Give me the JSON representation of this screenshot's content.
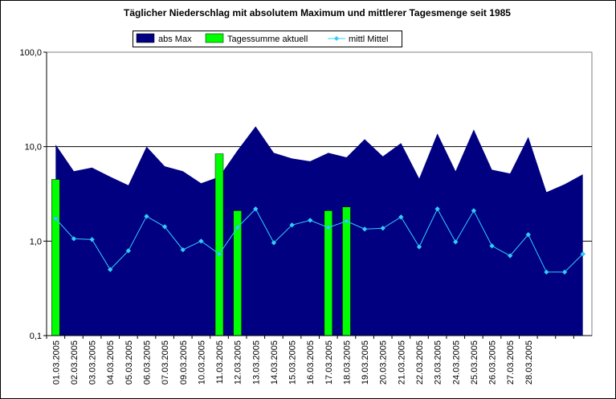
{
  "chart_data": {
    "type": "combo",
    "title": "Täglicher Niederschlag mit absolutem Maximum und mittlerer Tagesmenge seit 1985",
    "categories": [
      "01.03.2005",
      "02.03.2005",
      "03.03.2005",
      "04.03.2005",
      "05.03.2005",
      "06.03.2005",
      "07.03.2005",
      "09.03.2005",
      "10.03.2005",
      "11.03.2005",
      "12.03.2005",
      "13.03.2005",
      "14.03.2005",
      "15.03.2005",
      "16.03.2005",
      "17.03.2005",
      "18.03.2005",
      "19.03.2005",
      "20.03.2005",
      "21.03.2005",
      "22.03.2005",
      "23.03.2005",
      "24.03.2005",
      "25.03.2005",
      "26.03.2005",
      "27.03.2005",
      "28.03.2005",
      null,
      null,
      null
    ],
    "series": [
      {
        "name": "abs Max",
        "kind": "area",
        "color": "#000080",
        "values": [
          10.5,
          5.5,
          6.0,
          4.8,
          3.9,
          10.0,
          6.2,
          5.5,
          4.1,
          4.8,
          9.1,
          16.4,
          8.6,
          7.5,
          7.0,
          8.6,
          7.7,
          12.0,
          7.9,
          10.9,
          4.6,
          13.8,
          5.5,
          15.2,
          5.7,
          5.2,
          12.7,
          3.3,
          4.0,
          5.1
        ]
      },
      {
        "name": "Tagessumme aktuell",
        "kind": "bar",
        "color": "#00ff00",
        "values": [
          4.5,
          null,
          null,
          null,
          null,
          null,
          null,
          null,
          null,
          8.4,
          2.1,
          null,
          null,
          null,
          null,
          2.1,
          2.3,
          null,
          null,
          null,
          null,
          null,
          null,
          null,
          null,
          null,
          null,
          null,
          null,
          null
        ]
      },
      {
        "name": "mittl Mittel",
        "kind": "line",
        "color": "#33ccff",
        "values": [
          1.73,
          1.06,
          1.04,
          0.5,
          0.79,
          1.83,
          1.42,
          0.81,
          1.0,
          0.73,
          1.39,
          2.19,
          0.96,
          1.48,
          1.66,
          1.39,
          1.63,
          1.34,
          1.37,
          1.8,
          0.87,
          2.19,
          0.98,
          2.1,
          0.89,
          0.7,
          1.17,
          0.47,
          0.47,
          0.73
        ]
      }
    ],
    "ylim": [
      0.1,
      100
    ],
    "yticks": [
      {
        "value": 0.1,
        "label": "0,1"
      },
      {
        "value": 1,
        "label": "1,0"
      },
      {
        "value": 10,
        "label": "10,0"
      },
      {
        "value": 100,
        "label": "100,0"
      }
    ],
    "log_y": true,
    "grid": true,
    "legend": "top"
  }
}
